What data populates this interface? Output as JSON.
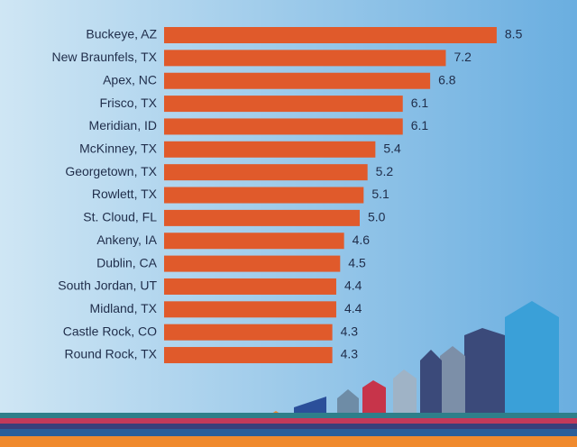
{
  "chart_data": {
    "type": "bar",
    "orientation": "horizontal",
    "categories": [
      "Buckeye, AZ",
      "New Braunfels, TX",
      "Apex, NC",
      "Frisco, TX",
      "Meridian, ID",
      "McKinney, TX",
      "Georgetown, TX",
      "Rowlett, TX",
      "St. Cloud, FL",
      "Ankeny, IA",
      "Dublin, CA",
      "South Jordan, UT",
      "Midland, TX",
      "Castle Rock, CO",
      "Round Rock, TX"
    ],
    "values": [
      8.5,
      7.2,
      6.8,
      6.1,
      6.1,
      5.4,
      5.2,
      5.1,
      5.0,
      4.6,
      4.5,
      4.4,
      4.4,
      4.3,
      4.3
    ],
    "value_labels": [
      "8.5",
      "7.2",
      "6.8",
      "6.1",
      "6.1",
      "5.4",
      "5.2",
      "5.1",
      "5.0",
      "4.6",
      "4.5",
      "4.4",
      "4.4",
      "4.3",
      "4.3"
    ],
    "color": "#e05a2b"
  }
}
